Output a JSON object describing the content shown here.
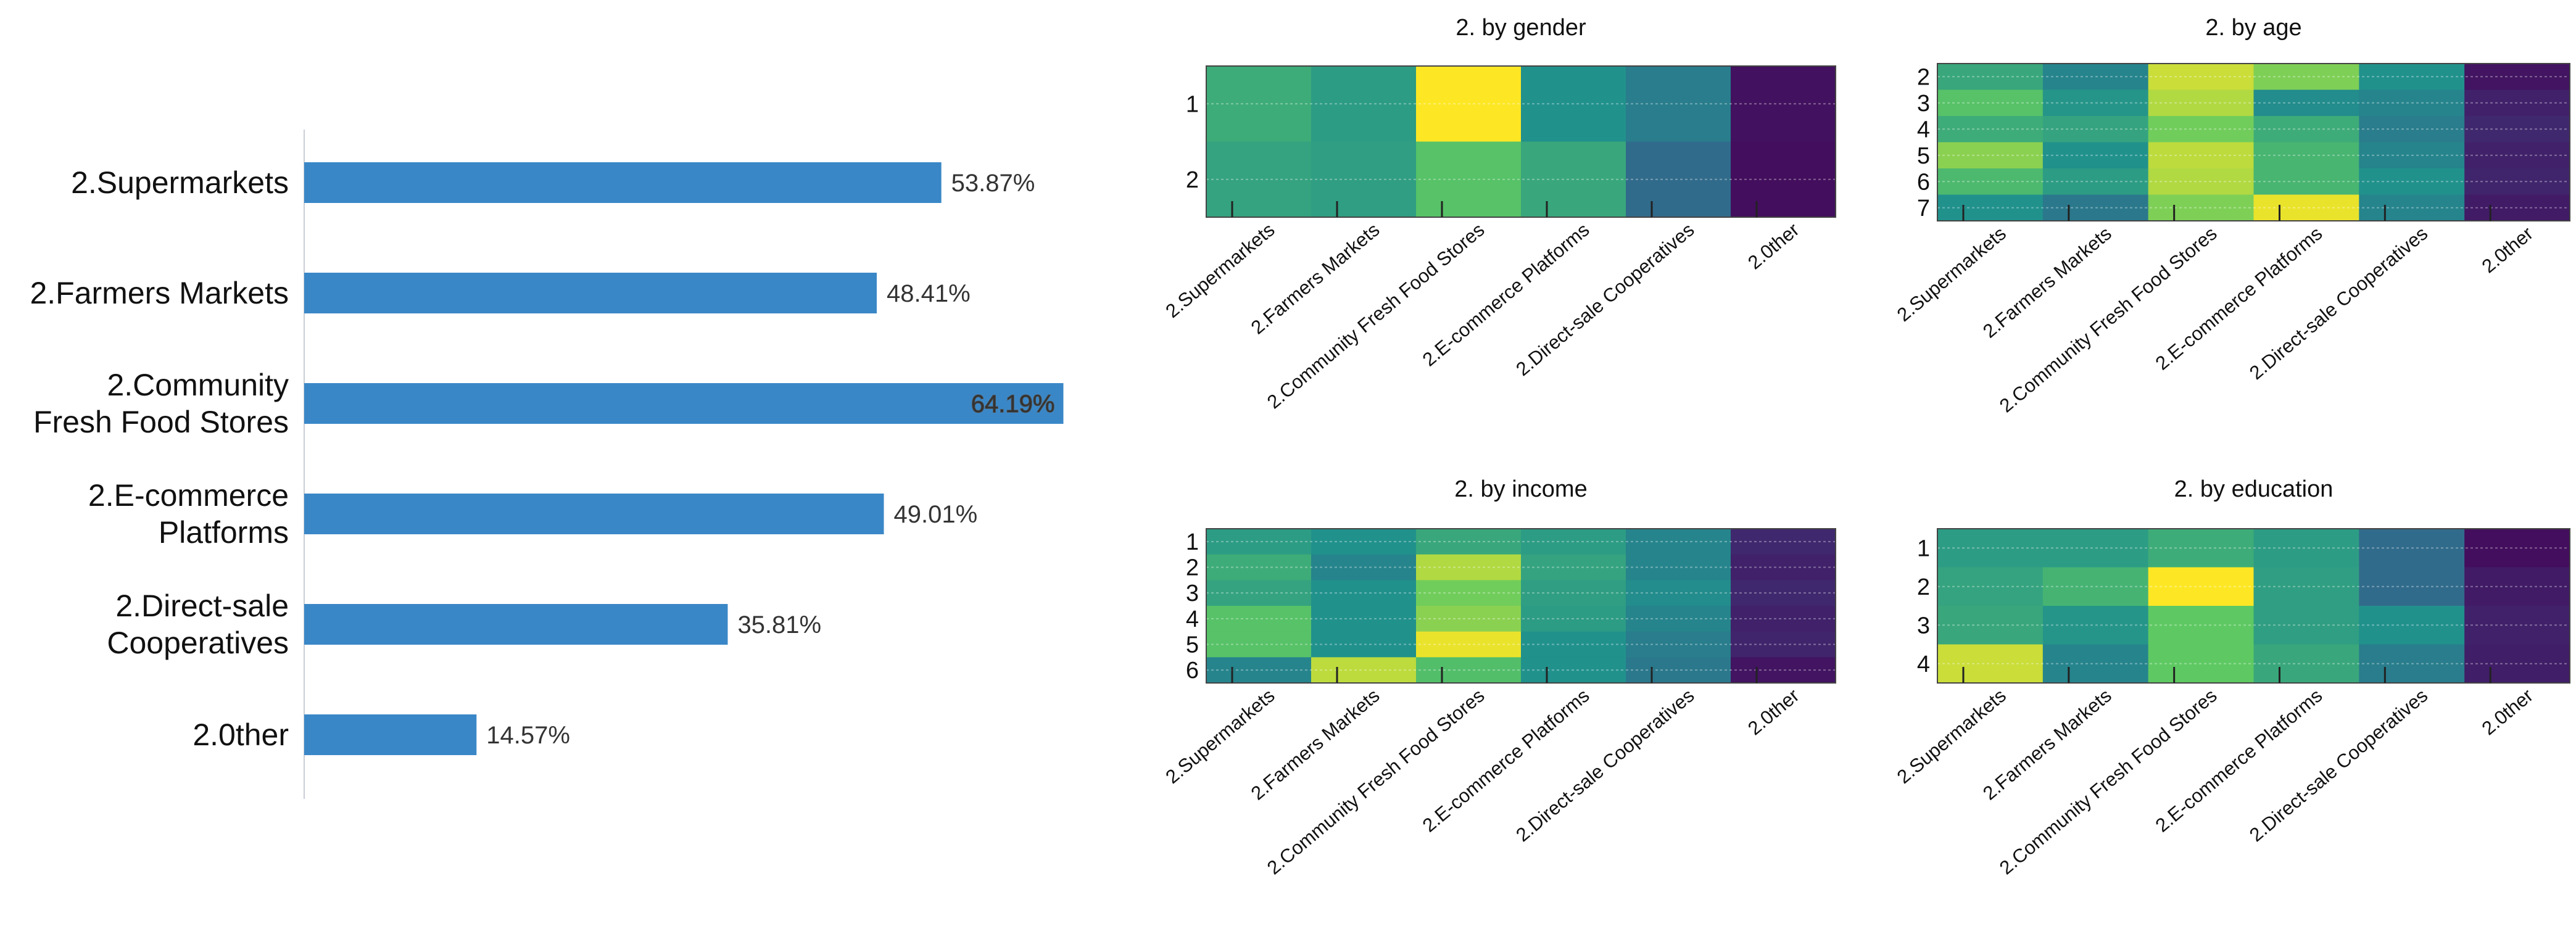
{
  "chart_data": [
    {
      "type": "bar",
      "orientation": "horizontal",
      "title": "",
      "categories": [
        "2.Supermarkets",
        "2.Farmers Markets",
        "2.Community\nFresh Food Stores",
        "2.E-commerce\nPlatforms",
        "2.Direct-sale\nCooperatives",
        "2.0ther"
      ],
      "values": [
        53.87,
        48.41,
        64.19,
        49.01,
        35.81,
        14.57
      ],
      "value_labels": [
        "53.87%",
        "48.41%",
        "64.19%",
        "49.01%",
        "35.81%",
        "14.57%"
      ],
      "xlim": [
        0,
        65
      ],
      "bar_color": "#3a87c7"
    },
    {
      "type": "heatmap",
      "title": "2. by gender",
      "x_categories": [
        "2.Supermarkets",
        "2.Farmers Markets",
        "2.Community  Fresh Food Stores",
        "2.E-commerce Platforms",
        "2.Direct-sale Cooperatives",
        "2.0ther"
      ],
      "y_categories": [
        "1",
        "2"
      ],
      "values": [
        [
          0.62,
          0.55,
          1.0,
          0.5,
          0.42,
          0.05
        ],
        [
          0.58,
          0.56,
          0.72,
          0.6,
          0.35,
          0.04
        ]
      ]
    },
    {
      "type": "heatmap",
      "title": "2. by age",
      "x_categories": [
        "2.Supermarkets",
        "2.Farmers Markets",
        "2.Community  Fresh Food Stores",
        "2.E-commerce Platforms",
        "2.Direct-sale Cooperatives",
        "2.0ther"
      ],
      "y_categories": [
        "2",
        "3",
        "4",
        "5",
        "6",
        "7"
      ],
      "values": [
        [
          0.6,
          0.45,
          0.92,
          0.8,
          0.5,
          0.06
        ],
        [
          0.72,
          0.52,
          0.88,
          0.48,
          0.45,
          0.1
        ],
        [
          0.62,
          0.58,
          0.78,
          0.62,
          0.42,
          0.12
        ],
        [
          0.82,
          0.5,
          0.9,
          0.66,
          0.45,
          0.1
        ],
        [
          0.68,
          0.55,
          0.88,
          0.66,
          0.5,
          0.11
        ],
        [
          0.5,
          0.4,
          0.8,
          0.97,
          0.45,
          0.08
        ]
      ]
    },
    {
      "type": "heatmap",
      "title": "2. by income",
      "x_categories": [
        "2.Supermarkets",
        "2.Farmers Markets",
        "2.Community  Fresh Food Stores",
        "2.E-commerce Platforms",
        "2.Direct-sale Cooperatives",
        "2.0ther"
      ],
      "y_categories": [
        "1",
        "2",
        "3",
        "4",
        "5",
        "6"
      ],
      "values": [
        [
          0.55,
          0.5,
          0.6,
          0.55,
          0.45,
          0.12
        ],
        [
          0.62,
          0.45,
          0.88,
          0.58,
          0.45,
          0.1
        ],
        [
          0.58,
          0.5,
          0.78,
          0.56,
          0.48,
          0.12
        ],
        [
          0.72,
          0.5,
          0.82,
          0.55,
          0.45,
          0.1
        ],
        [
          0.72,
          0.5,
          0.97,
          0.5,
          0.42,
          0.11
        ],
        [
          0.45,
          0.9,
          0.7,
          0.5,
          0.4,
          0.06
        ]
      ]
    },
    {
      "type": "heatmap",
      "title": "2. by education",
      "x_categories": [
        "2.Supermarkets",
        "2.Farmers Markets",
        "2.Community  Fresh Food Stores",
        "2.E-commerce Platforms",
        "2.Direct-sale Cooperatives",
        "2.0ther"
      ],
      "y_categories": [
        "1",
        "2",
        "3",
        "4"
      ],
      "values": [
        [
          0.55,
          0.55,
          0.62,
          0.55,
          0.35,
          0.04
        ],
        [
          0.58,
          0.65,
          1.0,
          0.56,
          0.35,
          0.08
        ],
        [
          0.6,
          0.52,
          0.75,
          0.56,
          0.5,
          0.1
        ],
        [
          0.92,
          0.45,
          0.75,
          0.6,
          0.42,
          0.09
        ]
      ]
    }
  ]
}
